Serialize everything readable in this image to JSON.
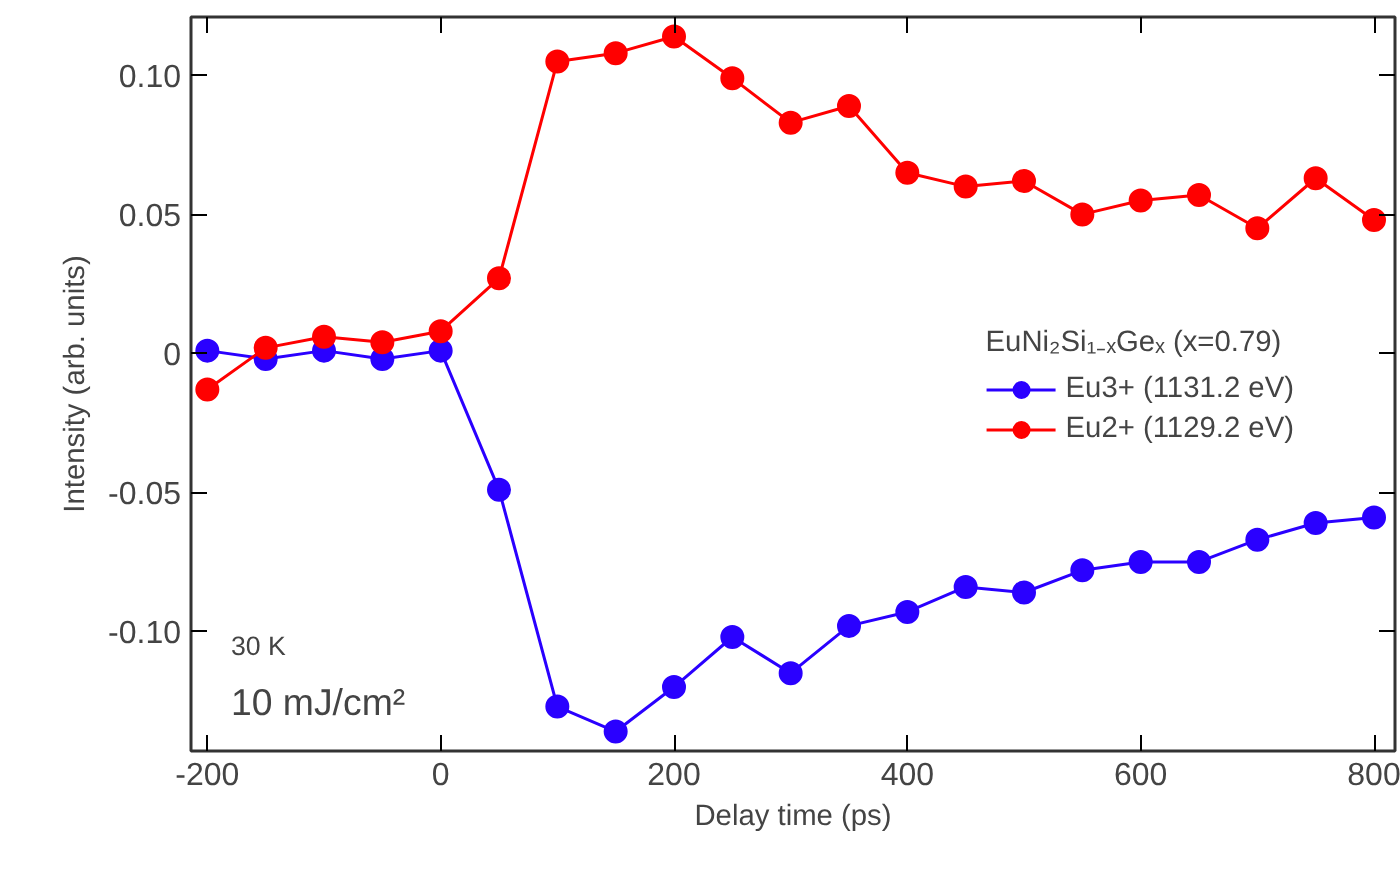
{
  "chart_data": {
    "type": "line",
    "xlabel": "Delay time (ps)",
    "ylabel": "Intensity (arb. units)",
    "legend_title": "EuNi₂Si₁₋ₓGeₓ (x=0.79)",
    "annotations": [
      "30 K",
      "10 mJ/cm²"
    ],
    "x": [
      -200,
      -150,
      -100,
      -50,
      0,
      50,
      100,
      150,
      200,
      250,
      300,
      350,
      400,
      450,
      500,
      550,
      600,
      650,
      700,
      750,
      800
    ],
    "series": [
      {
        "name": "Eu3+ (1131.2 eV)",
        "color": "#2a00ff",
        "values": [
          0.001,
          -0.002,
          0.001,
          -0.002,
          0.001,
          -0.049,
          -0.127,
          -0.136,
          -0.12,
          -0.102,
          -0.115,
          -0.098,
          -0.093,
          -0.084,
          -0.086,
          -0.078,
          -0.075,
          -0.075,
          -0.067,
          -0.061,
          -0.059
        ]
      },
      {
        "name": "Eu2+ (1129.2 eV)",
        "color": "#ff0000",
        "values": [
          -0.013,
          0.002,
          0.006,
          0.004,
          0.008,
          0.027,
          0.105,
          0.108,
          0.114,
          0.099,
          0.083,
          0.089,
          0.065,
          0.06,
          0.062,
          0.05,
          0.055,
          0.057,
          0.045,
          0.063,
          0.048
        ]
      }
    ],
    "xlim": [
      -214,
      818
    ],
    "ylim": [
      -0.143,
      0.121
    ],
    "xticks": [
      -200,
      0,
      200,
      400,
      600,
      800
    ],
    "yticks": [
      {
        "value": -0.1,
        "label": "-0.10"
      },
      {
        "value": -0.05,
        "label": "-0.05"
      },
      0,
      {
        "value": 0.05,
        "label": "0.05"
      },
      {
        "value": 0.1,
        "label": "0.10"
      }
    ],
    "grid": false,
    "legend": "right",
    "marker": "circle",
    "line_style": "solid"
  }
}
